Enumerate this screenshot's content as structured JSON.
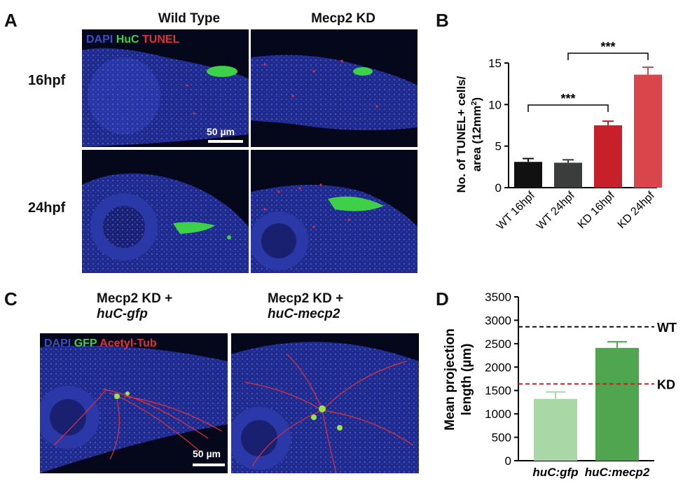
{
  "panels": {
    "a": {
      "letter": "A",
      "col_titles": [
        "Wild Type",
        "Mecp2 KD"
      ],
      "row_labels": [
        "16hpf",
        "24hpf"
      ],
      "stain_dapi": "DAPI",
      "stain_huc": "HuC",
      "stain_tunel": "TUNEL",
      "scale_bar": "50 µm"
    },
    "b": {
      "letter": "B"
    },
    "c": {
      "letter": "C",
      "title_1_line1": "Mecp2 KD +",
      "title_1_line2": "huC-gfp",
      "title_2_line1": "Mecp2 KD +",
      "title_2_line2": "huC-mecp2",
      "stain_dapi": "DAPI",
      "stain_gfp": "GFP",
      "stain_tub": "Acetyl-Tub",
      "scale_bar": "50 µm"
    },
    "d": {
      "letter": "D"
    }
  },
  "colors": {
    "dapi": "#3a4fc8",
    "green": "#3fd04a",
    "red": "#e0323a",
    "bar_wt16": "#111111",
    "bar_wt24": "#3a3d3c",
    "bar_kd16": "#c8202a",
    "bar_kd24": "#d8454a",
    "bar_gfp": "#a9d8a6",
    "bar_mecp2": "#4fa64f",
    "line_wt": "#111111",
    "line_kd": "#b3262a"
  },
  "chart_data": [
    {
      "type": "bar",
      "ylabel_line1": "No. of TUNEL+ cells/",
      "ylabel_line2": "area (12mm",
      "ylabel_sup": "2",
      "ylabel_end": ")",
      "categories": [
        "WT 16hpf",
        "WT 24hpf",
        "KD 16hpf",
        "KD 24hpf"
      ],
      "values": [
        3.1,
        3.0,
        7.5,
        13.6
      ],
      "errors": [
        0.4,
        0.35,
        0.5,
        0.9
      ],
      "ylim": [
        0,
        15
      ],
      "yticks": [
        0,
        5,
        10,
        15
      ],
      "significance": [
        {
          "from": 0,
          "to": 2,
          "label": "***"
        },
        {
          "from": 1,
          "to": 3,
          "label": "***"
        }
      ]
    },
    {
      "type": "bar",
      "ylabel_line1": "Mean projection",
      "ylabel_line2": "length (µm)",
      "categories": [
        "huC:gfp",
        "huC:mecp2"
      ],
      "values": [
        1320,
        2410
      ],
      "errors": [
        150,
        130
      ],
      "ylim": [
        0,
        3500
      ],
      "yticks": [
        0,
        500,
        1000,
        1500,
        2000,
        2500,
        3000,
        3500
      ],
      "reference_lines": [
        {
          "label": "WT",
          "value": 2860
        },
        {
          "label": "KD",
          "value": 1640
        }
      ]
    }
  ]
}
